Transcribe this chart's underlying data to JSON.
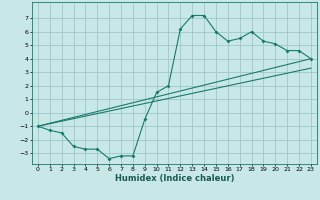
{
  "xlabel": "Humidex (Indice chaleur)",
  "ylabel": "",
  "background_color": "#c8e8e8",
  "grid_color": "#a0c8c8",
  "line_color": "#1a7a6a",
  "xlim": [
    -0.5,
    23.5
  ],
  "ylim": [
    -3.8,
    8.2
  ],
  "yticks": [
    -3,
    -2,
    -1,
    0,
    1,
    2,
    3,
    4,
    5,
    6,
    7
  ],
  "xticks": [
    0,
    1,
    2,
    3,
    4,
    5,
    6,
    7,
    8,
    9,
    10,
    11,
    12,
    13,
    14,
    15,
    16,
    17,
    18,
    19,
    20,
    21,
    22,
    23
  ],
  "curve1_x": [
    0,
    1,
    2,
    3,
    4,
    5,
    6,
    7,
    8,
    9,
    10,
    11,
    12,
    13,
    14,
    15,
    16,
    17,
    18,
    19,
    20,
    21,
    22,
    23
  ],
  "curve1_y": [
    -1.0,
    -1.3,
    -1.5,
    -2.5,
    -2.7,
    -2.7,
    -3.4,
    -3.2,
    -3.2,
    -0.5,
    1.5,
    2.0,
    6.2,
    7.2,
    7.2,
    6.0,
    5.3,
    5.5,
    6.0,
    5.3,
    5.1,
    4.6,
    4.6,
    4.0
  ],
  "line1_x": [
    0,
    23
  ],
  "line1_y": [
    -1.0,
    4.0
  ],
  "line2_x": [
    0,
    23
  ],
  "line2_y": [
    -1.0,
    3.3
  ],
  "xlabel_fontsize": 6.0,
  "tick_fontsize": 4.5
}
